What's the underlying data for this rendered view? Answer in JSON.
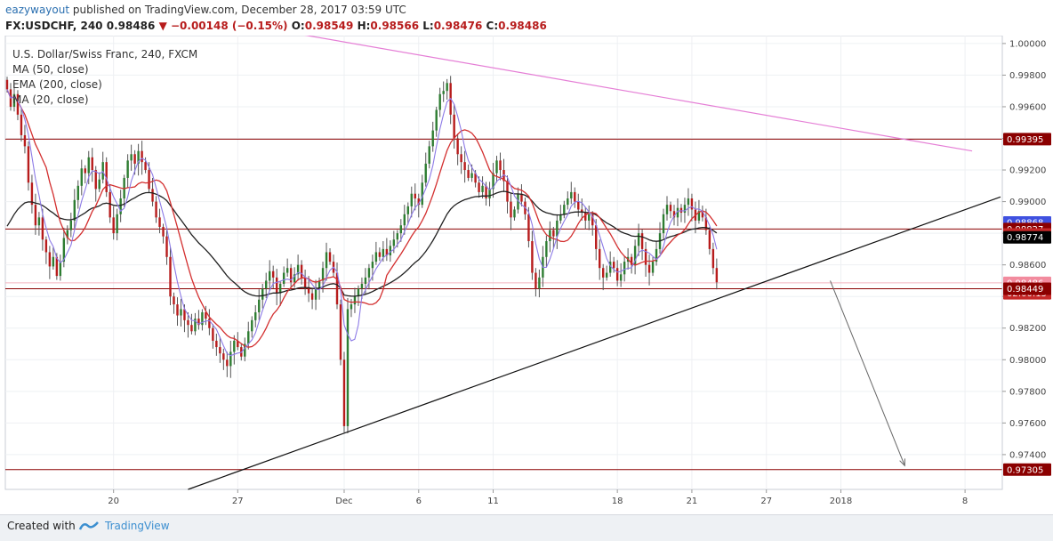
{
  "header": {
    "user": "eazywayout",
    "published": "published on TradingView.com, December 28, 2017 03:59 UTC",
    "symbol": "FX:USDCHF",
    "interval": "240",
    "last": "0.98486",
    "change_arrow": "▼",
    "change": "−0.00148 (−0.15%)",
    "o_label": "O:",
    "o": "0.98549",
    "h_label": "H:",
    "h": "0.98566",
    "l_label": "L:",
    "l": "0.98476",
    "c_label": "C:",
    "c": "0.98486"
  },
  "legend": {
    "title": "U.S. Dollar/Swiss Franc, 240, FXCM",
    "ma50": "MA (50, close)",
    "ema200": "EMA (200, close)",
    "ma20": "MA (20, close)"
  },
  "colors": {
    "up": "#2e7d32",
    "down": "#b71c1c",
    "wick": "#555555",
    "ma50": "#d32f2f",
    "ema200": "#212121",
    "ma20": "#8c7ae6",
    "hline": "#8b0000",
    "trend": "#111111",
    "pink": "#e57fd6",
    "arrow": "#666666",
    "badge_dark": "#8b0000",
    "badge_red": "#c62828",
    "badge_blue": "#3f51e0",
    "badge_black": "#000000",
    "badge_pink": "#f28b9e"
  },
  "footer": {
    "created": "Created with",
    "brand": "TradingView"
  },
  "chart_data": {
    "type": "candlestick",
    "ylim": [
      0.9718,
      1.0005
    ],
    "yticks": [
      "1.00000",
      "0.99800",
      "0.99600",
      "0.99400",
      "0.99200",
      "0.99000",
      "0.98800",
      "0.98600",
      "0.98400",
      "0.98200",
      "0.98000",
      "0.97800",
      "0.97600",
      "0.97400"
    ],
    "xticks": [
      {
        "label": "20",
        "bar": 30
      },
      {
        "label": "27",
        "bar": 65
      },
      {
        "label": "Dec",
        "bar": 95
      },
      {
        "label": "6",
        "bar": 116
      },
      {
        "label": "11",
        "bar": 137
      },
      {
        "label": "18",
        "bar": 172
      },
      {
        "label": "21",
        "bar": 193
      },
      {
        "label": "27",
        "bar": 214
      },
      {
        "label": "2018",
        "bar": 235
      },
      {
        "label": "8",
        "bar": 270
      }
    ],
    "total_bars": 280,
    "price_badges": [
      {
        "label": "0.99395",
        "value": 0.99395,
        "style": "dark"
      },
      {
        "label": "0.98868",
        "value": 0.98868,
        "style": "blue"
      },
      {
        "label": "0.98827",
        "value": 0.98827,
        "style": "dark"
      },
      {
        "label": "0.98792",
        "value": 0.98792,
        "style": "red"
      },
      {
        "label": "0.98774",
        "value": 0.98774,
        "style": "black"
      },
      {
        "label": "0.98486",
        "value": 0.98486,
        "style": "pink"
      },
      {
        "label": "02:00:13",
        "value": 0.9842,
        "style": "red"
      },
      {
        "label": "0.98449",
        "value": 0.98449,
        "style": "dark"
      },
      {
        "label": "0.97305",
        "value": 0.97305,
        "style": "dark"
      }
    ],
    "horizontal_lines": [
      0.99395,
      0.98827,
      0.98449,
      0.97305
    ],
    "last_price_line": 0.98486,
    "trendlines": [
      {
        "name": "resistance",
        "from": [
          59,
          1.0015
        ],
        "to": [
          272,
          0.9932
        ],
        "style": "pink"
      },
      {
        "name": "support",
        "from": [
          51,
          0.9718
        ],
        "to": [
          280,
          0.9903
        ],
        "style": "trend"
      }
    ],
    "projection_arrow": {
      "from": [
        232,
        0.985
      ],
      "to": [
        253,
        0.9733
      ]
    },
    "closes": [
      0.9971,
      0.996,
      0.9968,
      0.9955,
      0.9942,
      0.9935,
      0.9912,
      0.9898,
      0.9885,
      0.989,
      0.9876,
      0.9868,
      0.9859,
      0.9865,
      0.9853,
      0.9862,
      0.9877,
      0.9882,
      0.9888,
      0.9901,
      0.991,
      0.9921,
      0.9918,
      0.9928,
      0.992,
      0.9908,
      0.9914,
      0.9925,
      0.9906,
      0.989,
      0.988,
      0.9892,
      0.9902,
      0.9915,
      0.9926,
      0.993,
      0.9924,
      0.9932,
      0.9925,
      0.992,
      0.9908,
      0.99,
      0.989,
      0.9884,
      0.9878,
      0.9865,
      0.984,
      0.9835,
      0.9828,
      0.9832,
      0.9825,
      0.9822,
      0.9818,
      0.9826,
      0.9822,
      0.983,
      0.9826,
      0.982,
      0.9812,
      0.9808,
      0.9804,
      0.98,
      0.9796,
      0.9805,
      0.9812,
      0.9808,
      0.9802,
      0.981,
      0.9818,
      0.9825,
      0.983,
      0.9838,
      0.9845,
      0.985,
      0.9856,
      0.9852,
      0.9842,
      0.9848,
      0.9855,
      0.9858,
      0.9849,
      0.9854,
      0.986,
      0.9852,
      0.9846,
      0.9842,
      0.9838,
      0.9845,
      0.985,
      0.9858,
      0.9868,
      0.9862,
      0.9855,
      0.9835,
      0.98,
      0.9758,
      0.9832,
      0.9835,
      0.984,
      0.9845,
      0.9848,
      0.9852,
      0.9858,
      0.9862,
      0.9868,
      0.9865,
      0.987,
      0.9866,
      0.9872,
      0.9876,
      0.988,
      0.9885,
      0.9892,
      0.9897,
      0.9905,
      0.9902,
      0.9898,
      0.9912,
      0.9924,
      0.9935,
      0.9945,
      0.9958,
      0.9968,
      0.997,
      0.9975,
      0.9955,
      0.994,
      0.993,
      0.9925,
      0.992,
      0.9915,
      0.9918,
      0.9912,
      0.9906,
      0.991,
      0.9902,
      0.9908,
      0.9918,
      0.9926,
      0.992,
      0.9913,
      0.99,
      0.989,
      0.9895,
      0.9905,
      0.99,
      0.9892,
      0.9875,
      0.9855,
      0.9845,
      0.9852,
      0.9865,
      0.9875,
      0.9882,
      0.9878,
      0.9888,
      0.9892,
      0.9898,
      0.9902,
      0.9906,
      0.99,
      0.9895,
      0.9893,
      0.9888,
      0.9892,
      0.9885,
      0.987,
      0.9858,
      0.9852,
      0.9855,
      0.9862,
      0.9858,
      0.985,
      0.9854,
      0.9862,
      0.9865,
      0.986,
      0.9872,
      0.988,
      0.987,
      0.986,
      0.9855,
      0.9862,
      0.987,
      0.988,
      0.9892,
      0.9898,
      0.9894,
      0.989,
      0.9896,
      0.9893,
      0.9898,
      0.9902,
      0.9895,
      0.9888,
      0.9894,
      0.989,
      0.9882,
      0.987,
      0.9858,
      0.9849
    ]
  }
}
